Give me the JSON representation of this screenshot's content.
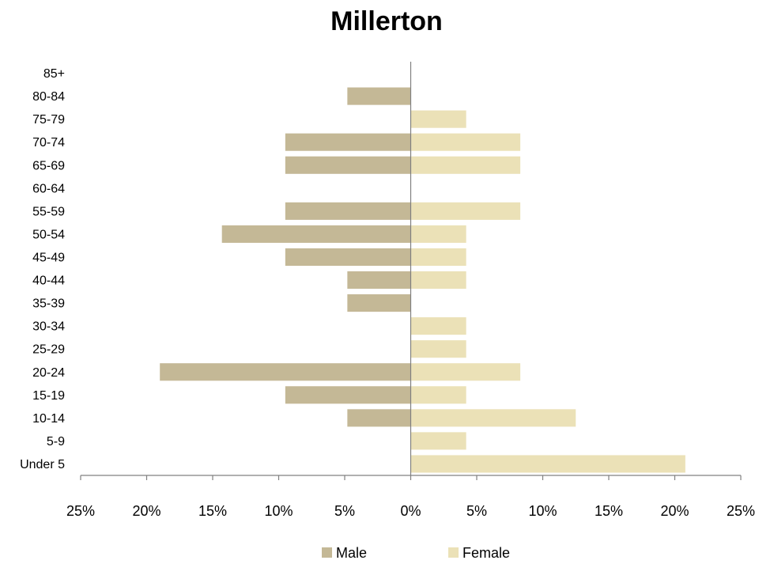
{
  "chart_data": {
    "type": "bar",
    "orientation": "horizontal",
    "title": "Millerton",
    "categories": [
      "85+",
      "80-84",
      "75-79",
      "70-74",
      "65-69",
      "60-64",
      "55-59",
      "50-54",
      "45-49",
      "40-44",
      "35-39",
      "30-34",
      "25-29",
      "20-24",
      "15-19",
      "10-14",
      "5-9",
      "Under 5"
    ],
    "series": [
      {
        "name": "Male",
        "color": "#c4b896",
        "values": [
          0,
          4.8,
          0,
          9.5,
          9.5,
          0,
          9.5,
          14.3,
          9.5,
          4.8,
          4.8,
          0,
          0,
          19.0,
          9.5,
          4.8,
          0,
          0
        ]
      },
      {
        "name": "Female",
        "color": "#ebe1b7",
        "values": [
          0,
          0,
          4.2,
          8.3,
          8.3,
          0,
          8.3,
          4.2,
          4.2,
          4.2,
          0,
          4.2,
          4.2,
          8.3,
          4.2,
          12.5,
          4.2,
          20.8
        ]
      }
    ],
    "xlim": [
      -25,
      25
    ],
    "x_ticks": [
      "25%",
      "20%",
      "15%",
      "10%",
      "5%",
      "0%",
      "5%",
      "10%",
      "15%",
      "20%",
      "25%"
    ],
    "xlabel": "",
    "ylabel": "",
    "grid": false,
    "legend_position": "bottom"
  }
}
